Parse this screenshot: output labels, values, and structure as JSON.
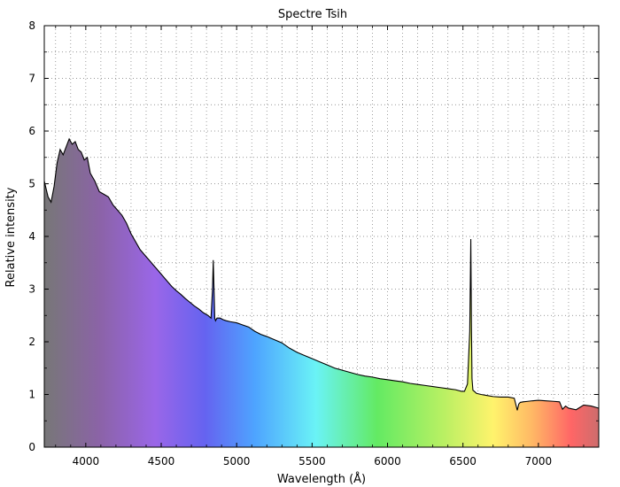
{
  "chart_data": {
    "type": "line",
    "title": "Spectre Tsih",
    "xlabel": "Wavelength (Å)",
    "ylabel": "Relative intensity",
    "xlim": [
      3725,
      7400
    ],
    "ylim": [
      0,
      8
    ],
    "x_ticks": [
      4000,
      4500,
      5000,
      5500,
      6000,
      6500,
      7000
    ],
    "x_tick_labels": [
      "4000",
      "4500",
      "5000",
      "5500",
      "6000",
      "6500",
      "7000"
    ],
    "y_ticks": [
      0,
      1,
      2,
      3,
      4,
      5,
      6,
      7,
      8
    ],
    "y_tick_labels": [
      "0",
      "1",
      "2",
      "3",
      "4",
      "5",
      "6",
      "7",
      "8"
    ],
    "grid": true,
    "fill_below": "visible spectrum gradient",
    "series": [
      {
        "x": [
          3725,
          3750,
          3770,
          3790,
          3810,
          3830,
          3850,
          3870,
          3890,
          3910,
          3930,
          3950,
          3970,
          3990,
          4010,
          4030,
          4060,
          4090,
          4120,
          4150,
          4180,
          4210,
          4240,
          4270,
          4300,
          4330,
          4360,
          4390,
          4420,
          4450,
          4480,
          4510,
          4540,
          4570,
          4600,
          4630,
          4660,
          4690,
          4720,
          4750,
          4780,
          4810,
          4830,
          4840,
          4845,
          4850,
          4855,
          4860,
          4870,
          4890,
          4910,
          4930,
          4960,
          5000,
          5040,
          5080,
          5120,
          5160,
          5200,
          5250,
          5300,
          5350,
          5400,
          5450,
          5500,
          5550,
          5600,
          5650,
          5700,
          5750,
          5800,
          5850,
          5900,
          5950,
          6000,
          6050,
          6100,
          6150,
          6200,
          6250,
          6300,
          6350,
          6400,
          6450,
          6490,
          6510,
          6530,
          6545,
          6552,
          6556,
          6560,
          6566,
          6575,
          6590,
          6620,
          6660,
          6700,
          6750,
          6800,
          6840,
          6860,
          6870,
          6880,
          6900,
          6930,
          6960,
          7000,
          7050,
          7100,
          7140,
          7160,
          7180,
          7200,
          7250,
          7300,
          7350,
          7400
        ],
        "y": [
          5.05,
          4.75,
          4.65,
          4.95,
          5.4,
          5.65,
          5.55,
          5.7,
          5.85,
          5.75,
          5.8,
          5.65,
          5.6,
          5.45,
          5.5,
          5.2,
          5.05,
          4.85,
          4.8,
          4.75,
          4.6,
          4.5,
          4.4,
          4.25,
          4.05,
          3.9,
          3.75,
          3.65,
          3.55,
          3.45,
          3.35,
          3.25,
          3.15,
          3.05,
          2.97,
          2.9,
          2.82,
          2.75,
          2.68,
          2.62,
          2.55,
          2.5,
          2.45,
          3.0,
          3.55,
          3.0,
          2.45,
          2.4,
          2.45,
          2.45,
          2.42,
          2.4,
          2.38,
          2.36,
          2.32,
          2.28,
          2.2,
          2.14,
          2.1,
          2.04,
          1.98,
          1.88,
          1.8,
          1.74,
          1.68,
          1.62,
          1.56,
          1.5,
          1.46,
          1.42,
          1.38,
          1.35,
          1.33,
          1.3,
          1.28,
          1.26,
          1.24,
          1.21,
          1.19,
          1.17,
          1.15,
          1.13,
          1.11,
          1.09,
          1.06,
          1.06,
          1.2,
          2.2,
          3.95,
          2.4,
          1.3,
          1.08,
          1.06,
          1.02,
          1.0,
          0.98,
          0.96,
          0.95,
          0.95,
          0.93,
          0.7,
          0.82,
          0.85,
          0.86,
          0.87,
          0.88,
          0.89,
          0.88,
          0.87,
          0.86,
          0.72,
          0.78,
          0.74,
          0.71,
          0.8,
          0.78,
          0.74
        ]
      }
    ]
  }
}
